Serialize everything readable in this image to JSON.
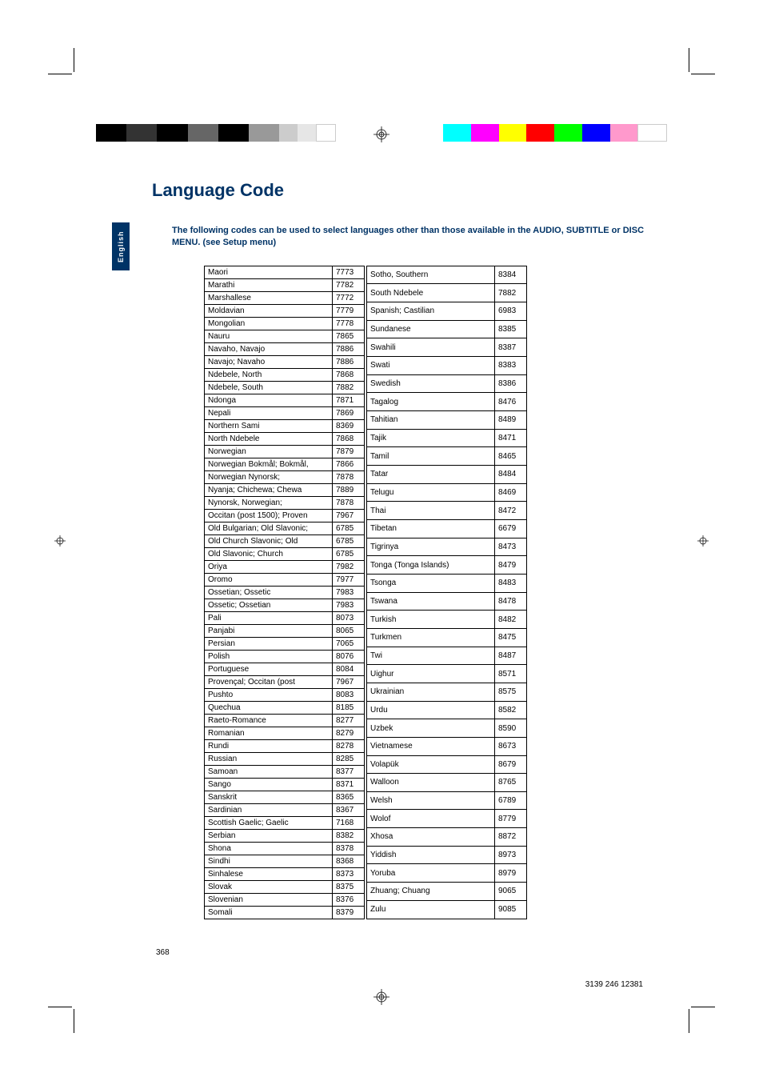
{
  "page": {
    "title": "Language Code",
    "intro_text": "The following codes can be used to select languages other than those available in the AUDIO, SUBTITLE or DISC MENU. (see Setup menu)",
    "side_tab": "English",
    "page_number": "368",
    "doc_code": "3139 246 12381"
  },
  "color_bars": {
    "left": [
      "#000000",
      "#333333",
      "#000000",
      "#666666",
      "#000000",
      "#999999",
      "#cccccc",
      "#e6e6e6",
      "#ffffff"
    ],
    "right": [
      "#00ffff",
      "#ff00ff",
      "#ffff00",
      "#ff0000",
      "#00ff00",
      "#0000ff",
      "#ff99cc",
      "#ffffff"
    ]
  },
  "styling": {
    "title_color": "#003366",
    "title_fontsize": 22,
    "intro_color": "#003366",
    "intro_fontsize": 11,
    "table_fontsize": 10,
    "border_color": "#000000",
    "side_tab_bg": "#003366",
    "side_tab_color": "#ffffff"
  },
  "table_left": [
    [
      "Maori",
      "7773"
    ],
    [
      "Marathi",
      "7782"
    ],
    [
      "Marshallese",
      "7772"
    ],
    [
      "Moldavian",
      "7779"
    ],
    [
      "Mongolian",
      "7778"
    ],
    [
      "Nauru",
      "7865"
    ],
    [
      "Navaho, Navajo",
      "7886"
    ],
    [
      "Navajo; Navaho",
      "7886"
    ],
    [
      "Ndebele, North",
      "7868"
    ],
    [
      "Ndebele, South",
      "7882"
    ],
    [
      "Ndonga",
      "7871"
    ],
    [
      "Nepali",
      "7869"
    ],
    [
      "Northern Sami",
      "8369"
    ],
    [
      "North Ndebele",
      "7868"
    ],
    [
      "Norwegian",
      "7879"
    ],
    [
      "Norwegian Bokmål; Bokmål,",
      "7866"
    ],
    [
      "Norwegian Nynorsk;",
      "7878"
    ],
    [
      "Nyanja; Chichewa; Chewa",
      "7889"
    ],
    [
      "Nynorsk, Norwegian;",
      "7878"
    ],
    [
      "Occitan (post 1500); Proven",
      "7967"
    ],
    [
      "Old Bulgarian; Old Slavonic;",
      "6785"
    ],
    [
      "Old Church Slavonic; Old",
      "6785"
    ],
    [
      "Old Slavonic; Church",
      "6785"
    ],
    [
      "Oriya",
      "7982"
    ],
    [
      "Oromo",
      "7977"
    ],
    [
      "Ossetian; Ossetic",
      "7983"
    ],
    [
      "Ossetic; Ossetian",
      "7983"
    ],
    [
      "Pali",
      "8073"
    ],
    [
      "Panjabi",
      "8065"
    ],
    [
      "Persian",
      "7065"
    ],
    [
      "Polish",
      "8076"
    ],
    [
      "Portuguese",
      "8084"
    ],
    [
      "Provençal; Occitan (post",
      "7967"
    ],
    [
      "Pushto",
      "8083"
    ],
    [
      "Quechua",
      "8185"
    ],
    [
      "Raeto-Romance",
      "8277"
    ],
    [
      "Romanian",
      "8279"
    ],
    [
      "Rundi",
      "8278"
    ],
    [
      "Russian",
      "8285"
    ],
    [
      "Samoan",
      "8377"
    ],
    [
      "Sango",
      "8371"
    ],
    [
      "Sanskrit",
      "8365"
    ],
    [
      "Sardinian",
      "8367"
    ],
    [
      "Scottish Gaelic; Gaelic",
      "7168"
    ],
    [
      "Serbian",
      "8382"
    ],
    [
      "Shona",
      "8378"
    ],
    [
      "Sindhi",
      "8368"
    ],
    [
      "Sinhalese",
      "8373"
    ],
    [
      "Slovak",
      "8375"
    ],
    [
      "Slovenian",
      "8376"
    ],
    [
      "Somali",
      "8379"
    ]
  ],
  "table_right": [
    [
      "Sotho, Southern",
      "8384"
    ],
    [
      "South Ndebele",
      "7882"
    ],
    [
      "Spanish; Castilian",
      "6983"
    ],
    [
      "Sundanese",
      "8385"
    ],
    [
      "Swahili",
      "8387"
    ],
    [
      "Swati",
      "8383"
    ],
    [
      "Swedish",
      "8386"
    ],
    [
      "Tagalog",
      "8476"
    ],
    [
      "Tahitian",
      "8489"
    ],
    [
      "Tajik",
      "8471"
    ],
    [
      "Tamil",
      "8465"
    ],
    [
      "Tatar",
      "8484"
    ],
    [
      "Telugu",
      "8469"
    ],
    [
      "Thai",
      "8472"
    ],
    [
      "Tibetan",
      "6679"
    ],
    [
      "Tigrinya",
      "8473"
    ],
    [
      "Tonga (Tonga Islands)",
      "8479"
    ],
    [
      "Tsonga",
      "8483"
    ],
    [
      "Tswana",
      "8478"
    ],
    [
      "Turkish",
      "8482"
    ],
    [
      "Turkmen",
      "8475"
    ],
    [
      "Twi",
      "8487"
    ],
    [
      "Uighur",
      "8571"
    ],
    [
      "Ukrainian",
      "8575"
    ],
    [
      "Urdu",
      "8582"
    ],
    [
      "Uzbek",
      "8590"
    ],
    [
      "Vietnamese",
      "8673"
    ],
    [
      "Volapük",
      "8679"
    ],
    [
      "Walloon",
      "8765"
    ],
    [
      "Welsh",
      "6789"
    ],
    [
      "Wolof",
      "8779"
    ],
    [
      "Xhosa",
      "8872"
    ],
    [
      "Yiddish",
      "8973"
    ],
    [
      "Yoruba",
      "8979"
    ],
    [
      "Zhuang; Chuang",
      "9065"
    ],
    [
      "Zulu",
      "9085"
    ]
  ]
}
